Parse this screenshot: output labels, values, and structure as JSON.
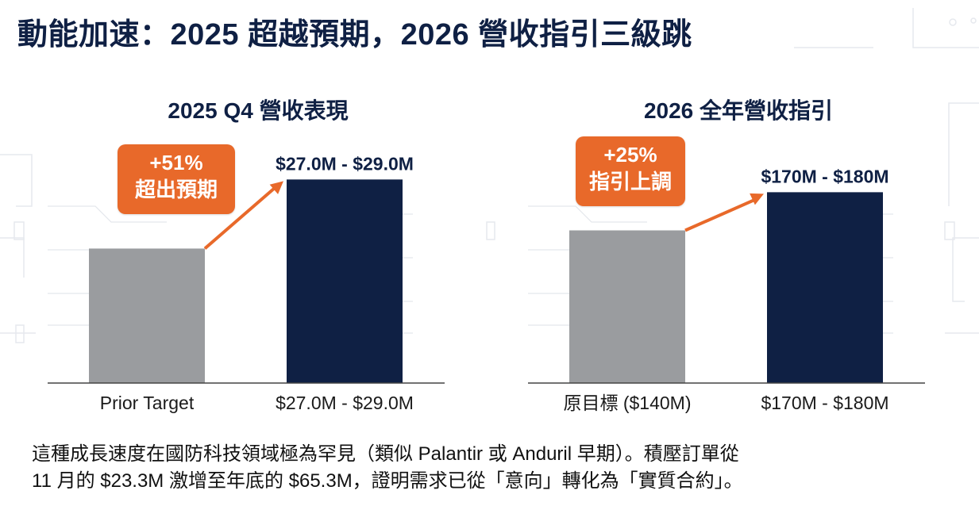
{
  "title": "動能加速：2025 超越預期，2026 營收指引三級跳",
  "colors": {
    "prior_bar": "#9a9c9f",
    "actual_bar": "#0f2044",
    "accent": "#e8692a",
    "title": "#0f2044"
  },
  "chart_data": [
    {
      "type": "bar",
      "title": "2025 Q4 營收表現",
      "categories": [
        "Prior Target",
        "$27.0M - $29.0M"
      ],
      "values": [
        18.5,
        28.0
      ],
      "value_ranges": [
        null,
        [
          27.0,
          29.0
        ]
      ],
      "data_labels": [
        "",
        "$27.0M - $29.0M"
      ],
      "ylim": [
        0,
        30
      ],
      "grid": false,
      "callout": {
        "line1": "+51%",
        "line2": "超出預期"
      }
    },
    {
      "type": "bar",
      "title": "2026 全年營收指引",
      "categories": [
        "原目標 ($140M)",
        "$170M - $180M"
      ],
      "values": [
        140,
        175
      ],
      "value_ranges": [
        null,
        [
          170,
          180
        ]
      ],
      "data_labels": [
        "",
        "$170M - $180M"
      ],
      "ylim": [
        0,
        200
      ],
      "grid": false,
      "callout": {
        "line1": "+25%",
        "line2": "指引上調"
      }
    }
  ],
  "caption": {
    "line1": "這種成長速度在國防科技領域極為罕見（類似 Palantir 或 Anduril 早期）。積壓訂單從",
    "line2": "11 月的 $23.3M 激增至年底的 $65.3M，證明需求已從「意向」轉化為「實質合約」。"
  }
}
